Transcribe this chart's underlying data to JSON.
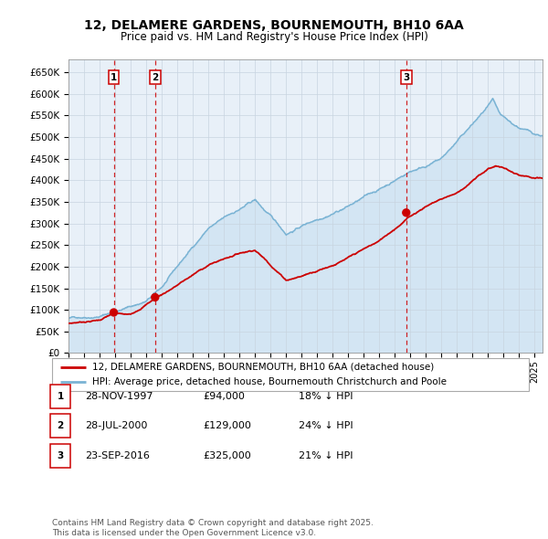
{
  "title_line1": "12, DELAMERE GARDENS, BOURNEMOUTH, BH10 6AA",
  "title_line2": "Price paid vs. HM Land Registry's House Price Index (HPI)",
  "ylim": [
    0,
    680000
  ],
  "yticks": [
    0,
    50000,
    100000,
    150000,
    200000,
    250000,
    300000,
    350000,
    400000,
    450000,
    500000,
    550000,
    600000,
    650000
  ],
  "ytick_labels": [
    "£0",
    "£50K",
    "£100K",
    "£150K",
    "£200K",
    "£250K",
    "£300K",
    "£350K",
    "£400K",
    "£450K",
    "£500K",
    "£550K",
    "£600K",
    "£650K"
  ],
  "xlim_start": 1995.0,
  "xlim_end": 2025.5,
  "sale_dates": [
    1997.91,
    2000.57,
    2016.73
  ],
  "sale_prices": [
    94000,
    129000,
    325000
  ],
  "sale_labels": [
    "1",
    "2",
    "3"
  ],
  "hpi_color": "#7ab3d4",
  "hpi_fill_color": "#c5dff0",
  "price_color": "#cc0000",
  "vline_color": "#cc0000",
  "background_color": "#e8f0f8",
  "grid_color": "#c8d4e0",
  "legend_line1": "12, DELAMERE GARDENS, BOURNEMOUTH, BH10 6AA (detached house)",
  "legend_line2": "HPI: Average price, detached house, Bournemouth Christchurch and Poole",
  "table_entries": [
    {
      "label": "1",
      "date": "28-NOV-1997",
      "price": "£94,000",
      "note": "18% ↓ HPI"
    },
    {
      "label": "2",
      "date": "28-JUL-2000",
      "price": "£129,000",
      "note": "24% ↓ HPI"
    },
    {
      "label": "3",
      "date": "23-SEP-2016",
      "price": "£325,000",
      "note": "21% ↓ HPI"
    }
  ],
  "footnote": "Contains HM Land Registry data © Crown copyright and database right 2025.\nThis data is licensed under the Open Government Licence v3.0."
}
